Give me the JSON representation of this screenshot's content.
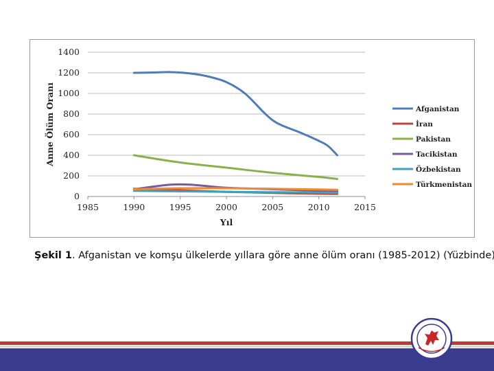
{
  "chart_data": {
    "type": "line",
    "ylabel": "Anne Ölüm Oranı",
    "xlabel": "Yıl",
    "xlim": [
      1985,
      2015
    ],
    "ylim": [
      0,
      1400
    ],
    "xticks": [
      1985,
      1990,
      1995,
      2000,
      2005,
      2010,
      2015
    ],
    "yticks": [
      0,
      200,
      400,
      600,
      800,
      1000,
      1200,
      1400
    ],
    "grid": "horizontal",
    "legend_position": "right",
    "series": [
      {
        "name": "Afganistan",
        "color": "#4f7bb8",
        "points": [
          [
            1990,
            1200
          ],
          [
            1992,
            1203
          ],
          [
            1994,
            1207
          ],
          [
            1996,
            1195
          ],
          [
            1998,
            1165
          ],
          [
            2000,
            1110
          ],
          [
            2002,
            1000
          ],
          [
            2004,
            820
          ],
          [
            2005,
            740
          ],
          [
            2006,
            690
          ],
          [
            2008,
            620
          ],
          [
            2010,
            540
          ],
          [
            2011,
            490
          ],
          [
            2012,
            400
          ]
        ]
      },
      {
        "name": "İran",
        "color": "#b5443a",
        "points": [
          [
            1990,
            75
          ],
          [
            1995,
            60
          ],
          [
            2000,
            45
          ],
          [
            2005,
            35
          ],
          [
            2010,
            27
          ],
          [
            2012,
            25
          ]
        ]
      },
      {
        "name": "Pakistan",
        "color": "#8ab04a",
        "points": [
          [
            1990,
            400
          ],
          [
            1995,
            330
          ],
          [
            2000,
            280
          ],
          [
            2005,
            230
          ],
          [
            2010,
            190
          ],
          [
            2012,
            170
          ]
        ]
      },
      {
        "name": "Tacikistan",
        "color": "#7a58a0",
        "points": [
          [
            1990,
            70
          ],
          [
            1992,
            95
          ],
          [
            1994,
            115
          ],
          [
            1996,
            115
          ],
          [
            1998,
            100
          ],
          [
            2000,
            85
          ],
          [
            2005,
            70
          ],
          [
            2010,
            55
          ],
          [
            2012,
            50
          ]
        ]
      },
      {
        "name": "Özbekistan",
        "color": "#3fa3b8",
        "points": [
          [
            1990,
            55
          ],
          [
            1995,
            50
          ],
          [
            2000,
            45
          ],
          [
            2005,
            42
          ],
          [
            2010,
            38
          ],
          [
            2012,
            35
          ]
        ]
      },
      {
        "name": "Türkmenistan",
        "color": "#ef8a32",
        "points": [
          [
            1990,
            70
          ],
          [
            1995,
            80
          ],
          [
            2000,
            80
          ],
          [
            2005,
            75
          ],
          [
            2010,
            68
          ],
          [
            2012,
            65
          ]
        ]
      }
    ]
  },
  "caption": {
    "label": "Şekil 1",
    "text": ". Afganistan ve komşu ülkelerde yıllara göre anne ölüm oranı (1985-2012) (Yüzbinde)"
  }
}
